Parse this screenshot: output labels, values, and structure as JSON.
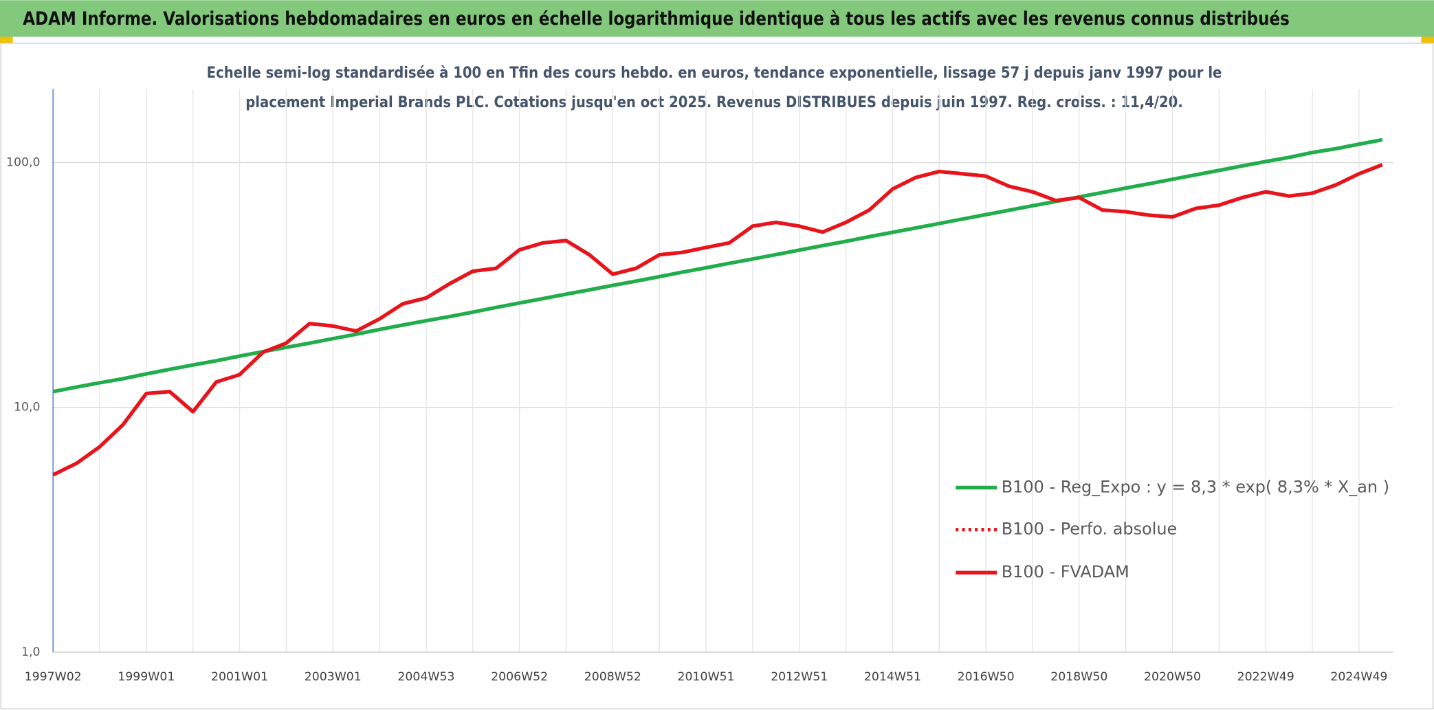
{
  "header": {
    "title": "ADAM Informe. Valorisations hebdomadaires en euros en échelle logarithmique identique à tous les actifs avec les revenus connus distribués"
  },
  "chart_data": {
    "type": "line",
    "subtitle": [
      "Echelle semi-log standardisée à 100 en Tfin des cours hebdo. en euros, tendance exponentielle, lissage 57 j depuis janv 1997 pour le",
      "placement Imperial Brands PLC. Cotations jusqu'en oct 2025. Revenus DISTRIBUES depuis juin 1997. Reg. croiss. : 11,4/20."
    ],
    "log_scale": true,
    "grid": true,
    "legend": "lower right",
    "ylim": [
      1,
      200
    ],
    "yticks": [
      {
        "value": 1,
        "label": "1,0"
      },
      {
        "value": 10,
        "label": "10,0"
      },
      {
        "value": 100,
        "label": "100,0"
      }
    ],
    "categories": [
      "1997W02",
      null,
      null,
      null,
      "1999W01",
      null,
      null,
      null,
      "2001W01",
      null,
      null,
      null,
      "2003W01",
      null,
      null,
      null,
      "2004W53",
      null,
      null,
      null,
      "2006W52",
      null,
      null,
      null,
      "2008W52",
      null,
      null,
      null,
      "2010W51",
      null,
      null,
      null,
      "2012W51",
      null,
      null,
      null,
      "2014W51",
      null,
      null,
      null,
      "2016W50",
      null,
      null,
      null,
      "2018W50",
      null,
      null,
      null,
      "2020W50",
      null,
      null,
      null,
      "2022W49",
      null,
      null,
      null,
      "2024W49",
      null
    ],
    "series": [
      {
        "name": "B100 - Reg_Expo : y = 8,3 * exp( 8,3% *  X_an )",
        "color": "#21ad4b",
        "style": "solid",
        "values": [
          11.6,
          12.1,
          12.6,
          13.1,
          13.7,
          14.3,
          14.9,
          15.5,
          16.2,
          16.9,
          17.6,
          18.3,
          19.1,
          19.9,
          20.8,
          21.7,
          22.6,
          23.5,
          24.5,
          25.6,
          26.7,
          27.8,
          29.0,
          30.2,
          31.5,
          32.8,
          34.2,
          35.7,
          37.2,
          38.8,
          40.4,
          42.1,
          43.9,
          45.8,
          47.7,
          49.8,
          51.9,
          54.1,
          56.4,
          58.8,
          61.3,
          63.9,
          66.6,
          69.4,
          72.4,
          75.5,
          78.7,
          82.0,
          85.5,
          89.1,
          92.9,
          96.9,
          101,
          105,
          110,
          114,
          119,
          124
        ]
      },
      {
        "name": "B100 - Perfo. absolue",
        "color": "#e8141b",
        "style": "dotted",
        "values": [
          5.3,
          5.9,
          6.9,
          8.5,
          11.4,
          11.6,
          9.6,
          12.7,
          13.6,
          16.8,
          18.3,
          22,
          21.5,
          20.5,
          23,
          26.5,
          28,
          32,
          36,
          37,
          44,
          47,
          48,
          42,
          35,
          37,
          42,
          43,
          45,
          47,
          55,
          57,
          55,
          52,
          57,
          64,
          78,
          87,
          92,
          90,
          88,
          80,
          76,
          70,
          72,
          64,
          63,
          61,
          60,
          65,
          67,
          72,
          76,
          73,
          75,
          81,
          90,
          98
        ]
      },
      {
        "name": "B100 - FVADAM",
        "color": "#e8141b",
        "style": "solid",
        "values": [
          5.3,
          5.9,
          6.9,
          8.5,
          11.4,
          11.6,
          9.6,
          12.7,
          13.6,
          16.8,
          18.3,
          22,
          21.5,
          20.5,
          23,
          26.5,
          28,
          32,
          36,
          37,
          44,
          47,
          48,
          42,
          35,
          37,
          42,
          43,
          45,
          47,
          55,
          57,
          55,
          52,
          57,
          64,
          78,
          87,
          92,
          90,
          88,
          80,
          76,
          70,
          72,
          64,
          63,
          61,
          60,
          65,
          67,
          72,
          76,
          73,
          75,
          81,
          90,
          98
        ]
      }
    ]
  }
}
